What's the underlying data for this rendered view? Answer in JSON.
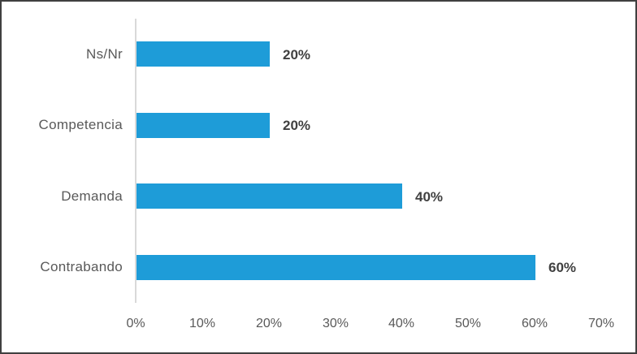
{
  "chart_data": {
    "type": "bar",
    "orientation": "horizontal",
    "title": "",
    "xlabel": "",
    "ylabel": "",
    "categories": [
      "Ns/Nr",
      "Competencia",
      "Demanda",
      "Contrabando"
    ],
    "values": [
      20,
      20,
      40,
      60
    ],
    "data_labels": [
      "20%",
      "20%",
      "40%",
      "60%"
    ],
    "x_ticks": [
      {
        "value": 0,
        "label": "0%"
      },
      {
        "value": 10,
        "label": "10%"
      },
      {
        "value": 20,
        "label": "20%"
      },
      {
        "value": 30,
        "label": "30%"
      },
      {
        "value": 40,
        "label": "40%"
      },
      {
        "value": 50,
        "label": "50%"
      },
      {
        "value": 60,
        "label": "60%"
      },
      {
        "value": 70,
        "label": "70%"
      }
    ],
    "xlim": [
      0,
      70
    ],
    "grid": false,
    "legend": false,
    "bar_color": "#1e9cd8"
  },
  "colors": {
    "bar": "#1e9cd8",
    "axis_line": "#d9d9d9",
    "category_text": "#595959",
    "tick_text": "#595959",
    "data_label_text": "#404040",
    "frame_border": "#3f3f3f",
    "background": "#ffffff"
  }
}
